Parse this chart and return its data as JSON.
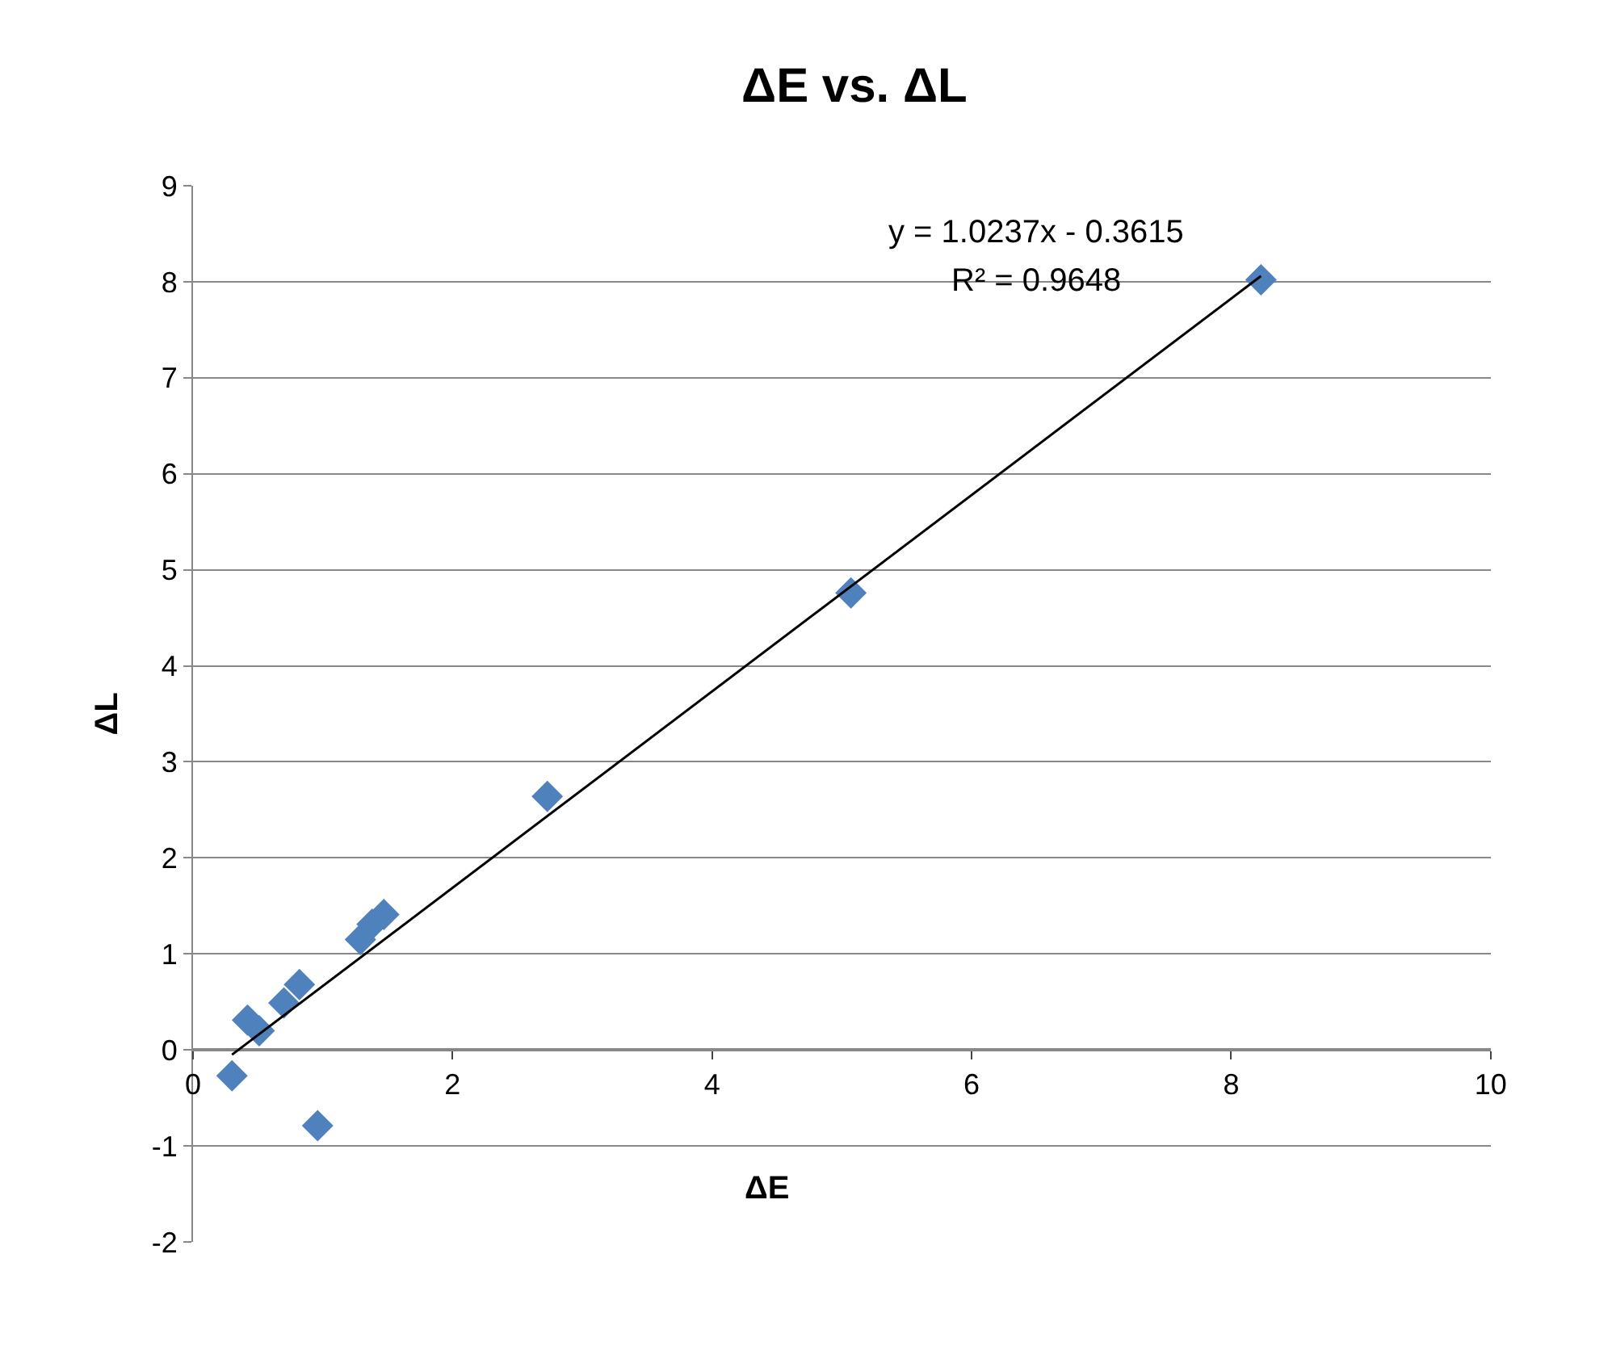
{
  "chart_data": {
    "type": "scatter",
    "title": "ΔE vs. ΔL",
    "xlabel": "ΔE",
    "ylabel": "ΔL",
    "series": [
      {
        "color": "#4f81bd",
        "marker": "diamond",
        "x": [
          0.3,
          0.96,
          0.42,
          0.51,
          0.7,
          0.82,
          1.29,
          1.38,
          1.47,
          2.73,
          5.07,
          8.23
        ],
        "values": [
          -0.27,
          -0.79,
          0.31,
          0.2,
          0.49,
          0.68,
          1.15,
          1.31,
          1.41,
          2.64,
          4.76,
          8.02
        ]
      },
      {
        "type": "line",
        "color": "#000000",
        "marker": "none",
        "line_style": "solid",
        "x": [
          0.3,
          8.23
        ],
        "values": [
          -0.05,
          8.06
        ]
      }
    ],
    "annotations": [
      "y = 1.0237x - 0.3615",
      "R² = 0.9648"
    ],
    "xlim": [
      0,
      10
    ],
    "xticks": [
      0,
      2,
      4,
      6,
      8,
      10
    ],
    "ylim": [
      -2,
      9
    ],
    "yticks": [
      -2,
      -1,
      0,
      1,
      2,
      3,
      4,
      5,
      6,
      7,
      8,
      9
    ],
    "grid": "y",
    "legend": false
  }
}
